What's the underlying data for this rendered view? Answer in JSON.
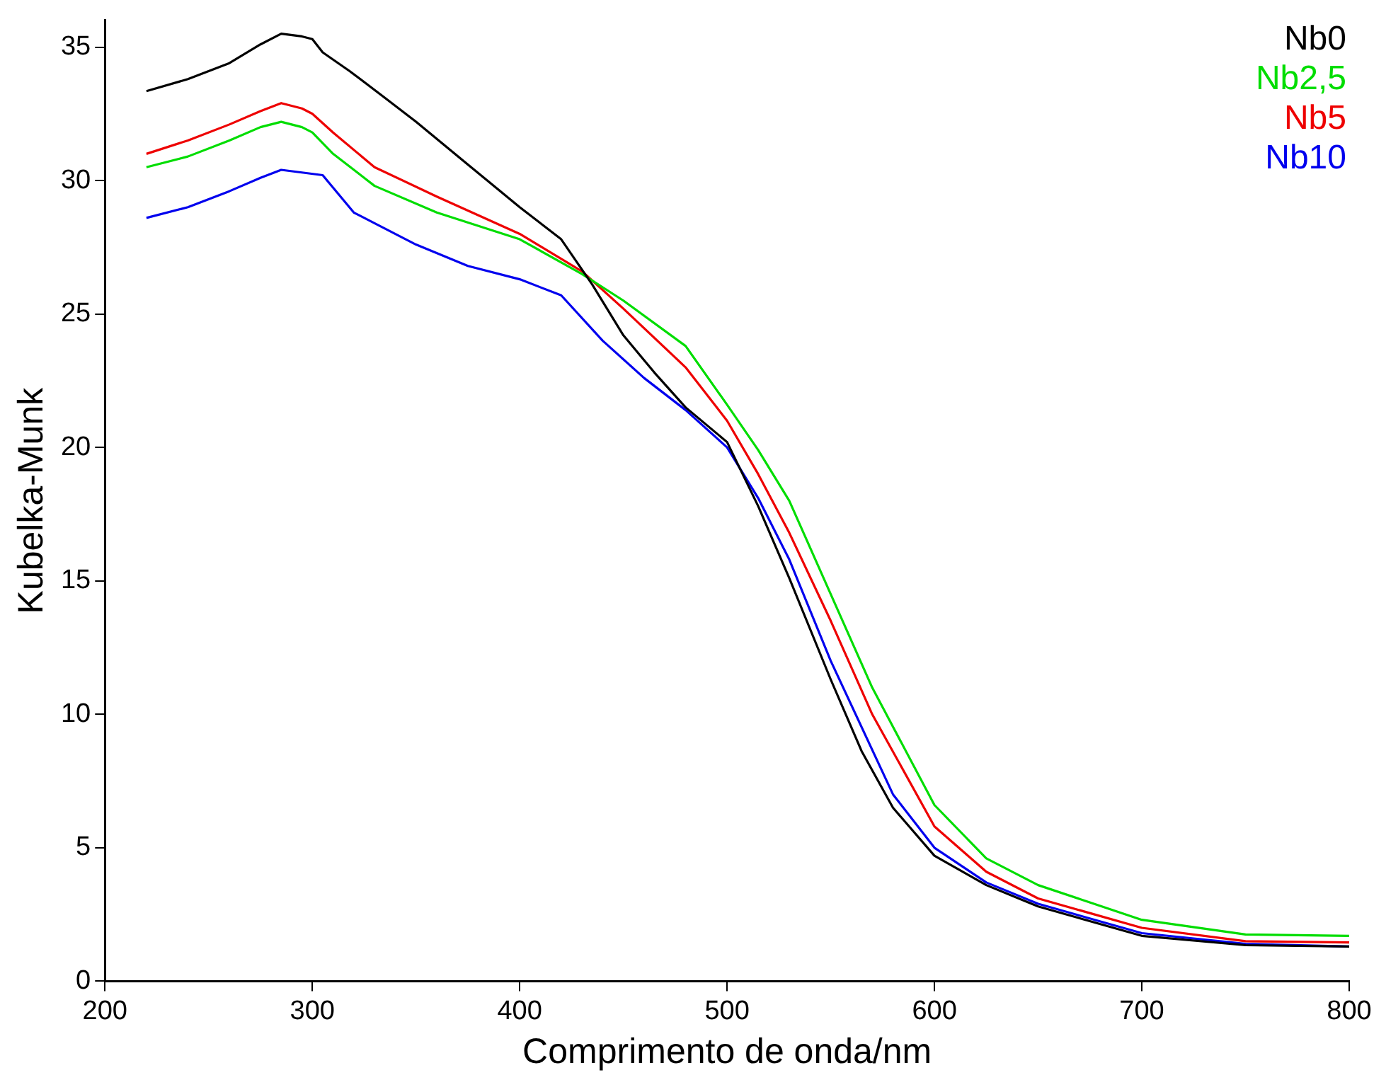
{
  "chart_data": {
    "type": "line",
    "xlabel": "Comprimento de onda/nm",
    "ylabel": "Kubelka-Munk",
    "xlim": [
      200,
      800
    ],
    "xticks": [
      200,
      300,
      400,
      500,
      600,
      700,
      800
    ],
    "ylim": [
      0,
      36
    ],
    "yticks": [
      0,
      5,
      10,
      15,
      20,
      25,
      30,
      35
    ],
    "grid": false,
    "legend": "top right",
    "marker": "none",
    "line_style": "solid",
    "series": [
      {
        "name": "Nb0",
        "color": "#000000",
        "x": [
          220,
          240,
          260,
          275,
          285,
          295,
          300,
          305,
          318,
          335,
          350,
          375,
          400,
          420,
          435,
          450,
          465,
          480,
          500,
          515,
          530,
          550,
          565,
          580,
          600,
          625,
          650,
          700,
          750,
          800
        ],
        "values": [
          33.35,
          33.8,
          34.4,
          35.1,
          35.5,
          35.4,
          35.3,
          34.8,
          34.1,
          33.1,
          32.2,
          30.6,
          29.0,
          27.8,
          26.1,
          24.2,
          22.8,
          21.5,
          20.2,
          17.8,
          15.1,
          11.3,
          8.6,
          6.5,
          4.7,
          3.6,
          2.8,
          1.7,
          1.35,
          1.3
        ]
      },
      {
        "name": "Nb2,5",
        "color": "#00dd00",
        "x": [
          220,
          240,
          260,
          275,
          285,
          295,
          300,
          310,
          330,
          360,
          400,
          430,
          450,
          480,
          500,
          515,
          530,
          550,
          570,
          600,
          625,
          650,
          700,
          750,
          800
        ],
        "values": [
          30.5,
          30.9,
          31.5,
          32.0,
          32.2,
          32.0,
          31.8,
          31.0,
          29.8,
          28.8,
          27.8,
          26.5,
          25.5,
          23.8,
          21.6,
          19.9,
          18.0,
          14.5,
          11.0,
          6.6,
          4.6,
          3.6,
          2.3,
          1.75,
          1.7
        ]
      },
      {
        "name": "Nb5",
        "color": "#ee0000",
        "x": [
          220,
          240,
          260,
          275,
          285,
          295,
          300,
          310,
          330,
          360,
          400,
          430,
          450,
          480,
          500,
          515,
          530,
          550,
          570,
          600,
          625,
          650,
          700,
          750,
          800
        ],
        "values": [
          31.0,
          31.5,
          32.1,
          32.6,
          32.9,
          32.7,
          32.5,
          31.8,
          30.5,
          29.4,
          28.0,
          26.6,
          25.2,
          23.0,
          21.0,
          19.0,
          16.8,
          13.5,
          10.0,
          5.8,
          4.1,
          3.1,
          2.0,
          1.5,
          1.45
        ]
      },
      {
        "name": "Nb10",
        "color": "#0000ee",
        "x": [
          220,
          240,
          260,
          275,
          285,
          295,
          305,
          320,
          350,
          375,
          400,
          420,
          440,
          460,
          480,
          500,
          515,
          530,
          550,
          580,
          600,
          625,
          650,
          700,
          750,
          800
        ],
        "values": [
          28.6,
          29.0,
          29.6,
          30.1,
          30.4,
          30.3,
          30.2,
          28.8,
          27.6,
          26.8,
          26.3,
          25.7,
          24.0,
          22.6,
          21.4,
          20.0,
          18.1,
          15.8,
          12.0,
          7.0,
          5.0,
          3.7,
          2.9,
          1.8,
          1.4,
          1.3
        ]
      }
    ]
  }
}
